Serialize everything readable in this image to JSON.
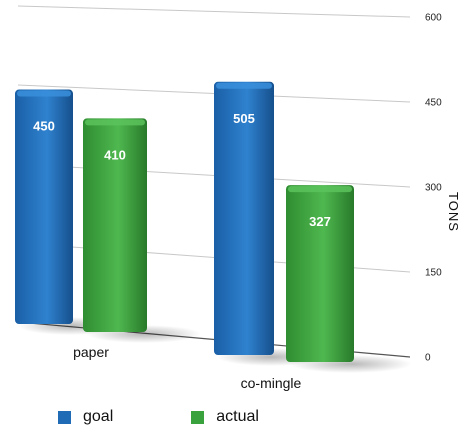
{
  "chart_data": {
    "type": "bar",
    "categories": [
      "paper",
      "co-mingle"
    ],
    "series": [
      {
        "name": "goal",
        "values": [
          450,
          505
        ],
        "color": "#1f6bb5"
      },
      {
        "name": "actual",
        "values": [
          410,
          327
        ],
        "color": "#3aa23c"
      }
    ],
    "ylabel": "TONS",
    "yticks": [
      0,
      150,
      300,
      450,
      600
    ],
    "ylim": [
      0,
      600
    ],
    "data_labels": true,
    "legend_position": "bottom",
    "style": "3d",
    "grid": true
  }
}
